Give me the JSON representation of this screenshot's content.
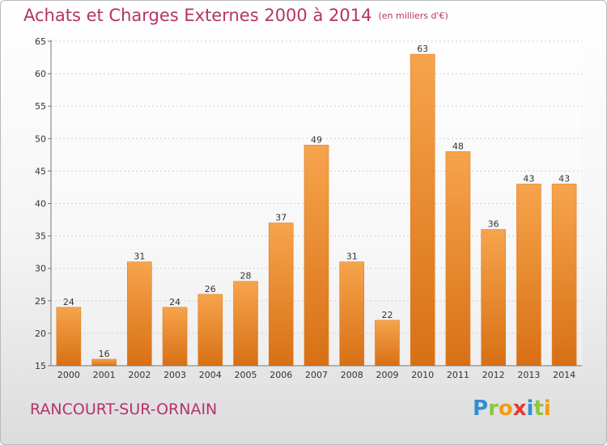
{
  "title": "Achats et Charges Externes 2000 à 2014",
  "subtitle": "(en milliers d'€)",
  "place": "RANCOURT-SUR-ORNAIN",
  "logo": {
    "letters": [
      "P",
      "r",
      "o",
      "x",
      "i",
      "t",
      "i"
    ],
    "colors": [
      "#2f8fd6",
      "#8dc63f",
      "#f39c12",
      "#e53935",
      "#2f8fd6",
      "#8dc63f",
      "#f39c12"
    ]
  },
  "colors": {
    "bar_light": "#f6a44c",
    "bar_dark": "#d87015",
    "title": "#b5336a"
  },
  "chart_data": {
    "type": "bar",
    "title": "Achats et Charges Externes 2000 à 2014",
    "subtitle": "(en milliers d'€)",
    "categories": [
      "2000",
      "2001",
      "2002",
      "2003",
      "2004",
      "2005",
      "2006",
      "2007",
      "2008",
      "2009",
      "2010",
      "2011",
      "2012",
      "2013",
      "2014"
    ],
    "values": [
      24,
      16,
      31,
      24,
      26,
      28,
      37,
      49,
      31,
      22,
      63,
      48,
      36,
      43,
      43
    ],
    "ylim": [
      15,
      65
    ],
    "yticks": [
      15,
      20,
      25,
      30,
      35,
      40,
      45,
      50,
      55,
      60,
      65
    ],
    "grid": true,
    "xlabel": "",
    "ylabel": ""
  }
}
